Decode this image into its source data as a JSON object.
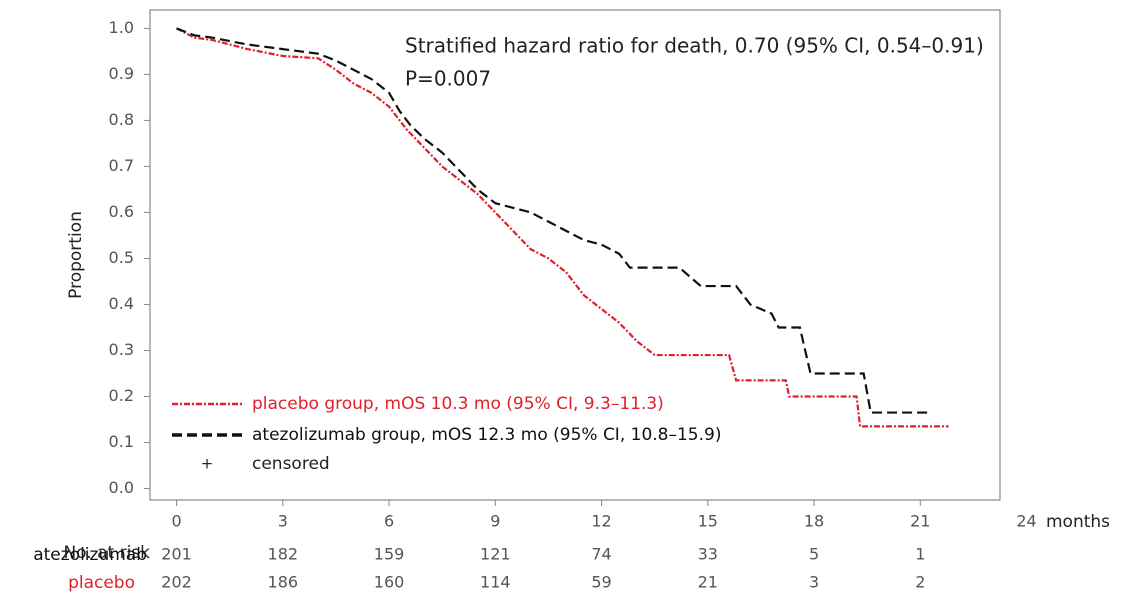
{
  "chart_data": {
    "type": "line",
    "annotations": [
      "Stratified hazard ratio for death, 0.70 (95% CI, 0.54–0.91)",
      "P=0.007"
    ],
    "y_label": "Proportion",
    "x_label": "months",
    "xlim": [
      -0.75,
      23.25
    ],
    "xticks": [
      0,
      3,
      6,
      9,
      12,
      15,
      18,
      21,
      24
    ],
    "ylim": [
      -0.025,
      1.04
    ],
    "yticks": [
      {
        "value": 0,
        "label": "0.0"
      },
      0.1,
      0.2,
      0.3,
      0.4,
      0.5,
      0.6,
      0.7,
      0.8,
      0.9,
      {
        "value": 1,
        "label": "1.0"
      }
    ],
    "series": [
      {
        "name": "placebo group, mOS 10.3 mo (95% CI, 9.3–11.3)",
        "color": "#e0202a",
        "dash": "6,2,2,2",
        "x": [
          0,
          0.5,
          1,
          2,
          3,
          4,
          4.5,
          5,
          5.5,
          6,
          6.5,
          7,
          7.5,
          8,
          8.5,
          9,
          9.5,
          10,
          10.5,
          11,
          11.5,
          12,
          12.5,
          13,
          13.5,
          15.6,
          15.8,
          17.2,
          17.3,
          19.2,
          19.3,
          21.8
        ],
        "values": [
          1.0,
          0.98,
          0.975,
          0.955,
          0.94,
          0.935,
          0.91,
          0.88,
          0.86,
          0.83,
          0.78,
          0.74,
          0.7,
          0.67,
          0.64,
          0.6,
          0.56,
          0.52,
          0.5,
          0.47,
          0.42,
          0.39,
          0.36,
          0.32,
          0.29,
          0.29,
          0.235,
          0.235,
          0.2,
          0.2,
          0.135,
          0.135
        ]
      },
      {
        "name": "atezolizumab group, mOS 12.3 mo (95% CI, 10.8–15.9)",
        "color": "#111111",
        "dash": "10,5",
        "x": [
          0,
          0.5,
          1,
          2,
          3,
          4,
          4.5,
          5,
          5.5,
          6,
          6.3,
          6.6,
          7,
          7.5,
          8,
          8.5,
          9,
          9.5,
          10,
          10.5,
          11,
          11.5,
          12,
          12.5,
          12.8,
          14.2,
          14.8,
          15.8,
          16.2,
          16.8,
          17.0,
          17.6,
          17.9,
          19.4,
          19.6,
          21.3
        ],
        "values": [
          1.0,
          0.985,
          0.98,
          0.965,
          0.955,
          0.945,
          0.93,
          0.91,
          0.89,
          0.86,
          0.82,
          0.79,
          0.76,
          0.73,
          0.69,
          0.65,
          0.62,
          0.61,
          0.6,
          0.58,
          0.56,
          0.54,
          0.53,
          0.51,
          0.48,
          0.48,
          0.44,
          0.44,
          0.4,
          0.38,
          0.35,
          0.35,
          0.25,
          0.25,
          0.165,
          0.165
        ]
      }
    ],
    "censored_label": "censored",
    "risk_table": {
      "title": "No. at risk",
      "rows": [
        {
          "name": "atezolizumab",
          "color": "#111111",
          "values": [
            201,
            182,
            159,
            121,
            74,
            33,
            5,
            1
          ]
        },
        {
          "name": "placebo",
          "color": "#e0202a",
          "values": [
            202,
            186,
            160,
            114,
            59,
            21,
            3,
            2
          ]
        }
      ]
    }
  }
}
